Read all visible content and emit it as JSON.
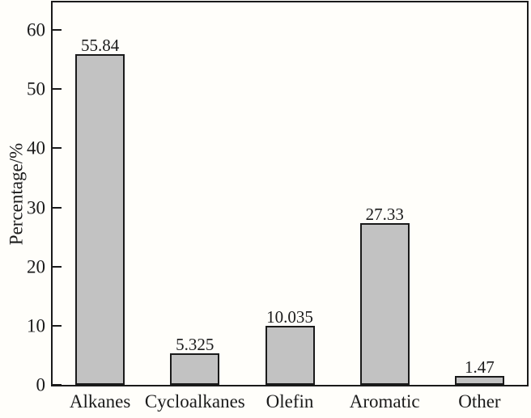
{
  "chart_data": {
    "type": "bar",
    "title": "",
    "xlabel": "",
    "ylabel": "Percentage/%",
    "categories": [
      "Alkanes",
      "Cycloalkanes",
      "Olefin",
      "Aromatic",
      "Other"
    ],
    "values": [
      55.84,
      5.325,
      10.035,
      27.33,
      1.47
    ],
    "value_labels": [
      "55.84",
      "5.325",
      "10.035",
      "27.33",
      "1.47"
    ],
    "y_ticks": [
      0,
      10,
      20,
      30,
      40,
      50,
      60
    ],
    "ylim": [
      0,
      65
    ],
    "grid": false,
    "legend": "none",
    "bar_fill_color": "#c2c2c2",
    "bar_border_color": "#1a1a1a",
    "frame_color": "#1a1a1a",
    "background_color": "#fffefa"
  }
}
